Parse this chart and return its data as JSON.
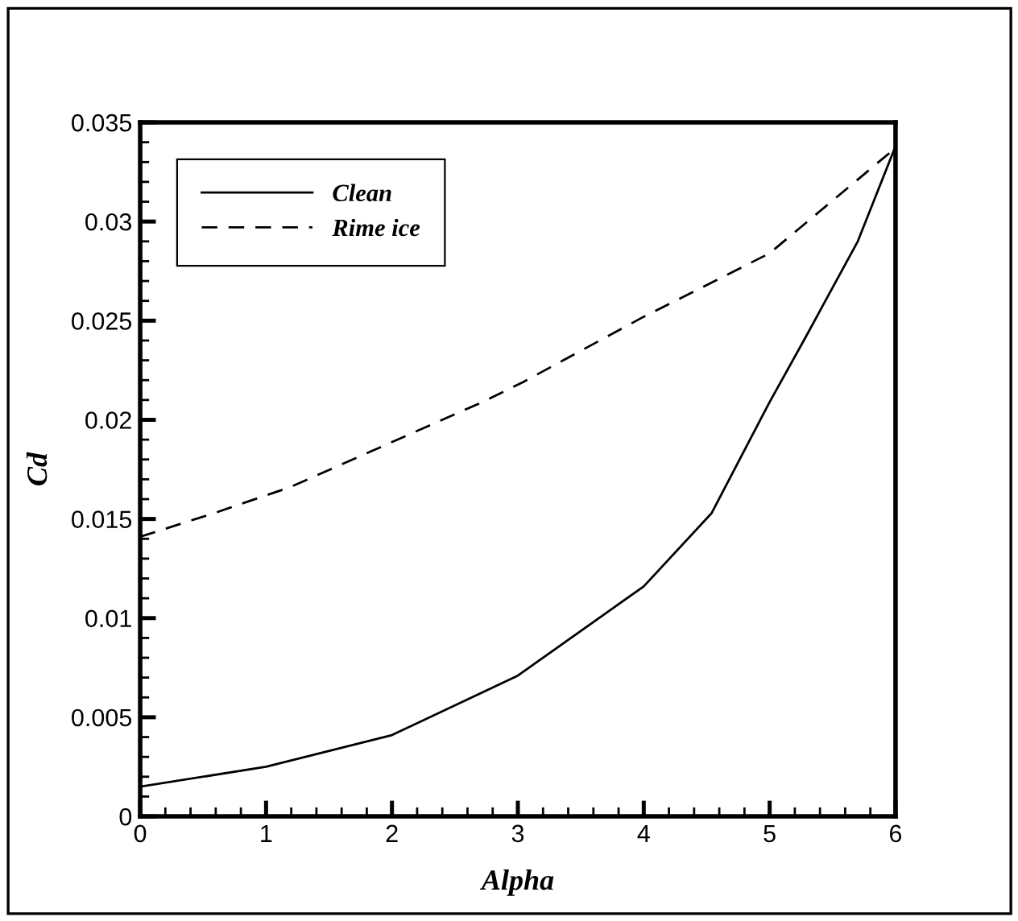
{
  "chart_data": {
    "type": "line",
    "xlabel": "Alpha",
    "ylabel": "Cd",
    "xlim": [
      0,
      6
    ],
    "xticks": [
      0,
      1,
      2,
      3,
      4,
      5,
      6
    ],
    "ylim": [
      0,
      0.035
    ],
    "yticks": [
      0,
      0.005,
      0.01,
      0.015,
      0.02,
      0.025,
      0.03,
      0.035
    ],
    "grid": false,
    "legend": "top left",
    "series": [
      {
        "name": "Clean",
        "color": "#000000",
        "line_style": "solid",
        "x": [
          0,
          1,
          2,
          3,
          4,
          4.54,
          5,
          5.28,
          5.7,
          6
        ],
        "values": [
          0.0015,
          0.0025,
          0.0041,
          0.0071,
          0.0116,
          0.0153,
          0.0209,
          0.0241,
          0.029,
          0.0338
        ]
      },
      {
        "name": "Rime ice",
        "color": "#000000",
        "line_style": "dashed",
        "x": [
          0,
          0.59,
          1.19,
          2.72,
          3.04,
          4,
          5,
          5.96,
          6
        ],
        "values": [
          0.0141,
          0.0153,
          0.0166,
          0.0209,
          0.0219,
          0.0252,
          0.0284,
          0.0335,
          0.0338
        ]
      }
    ]
  }
}
